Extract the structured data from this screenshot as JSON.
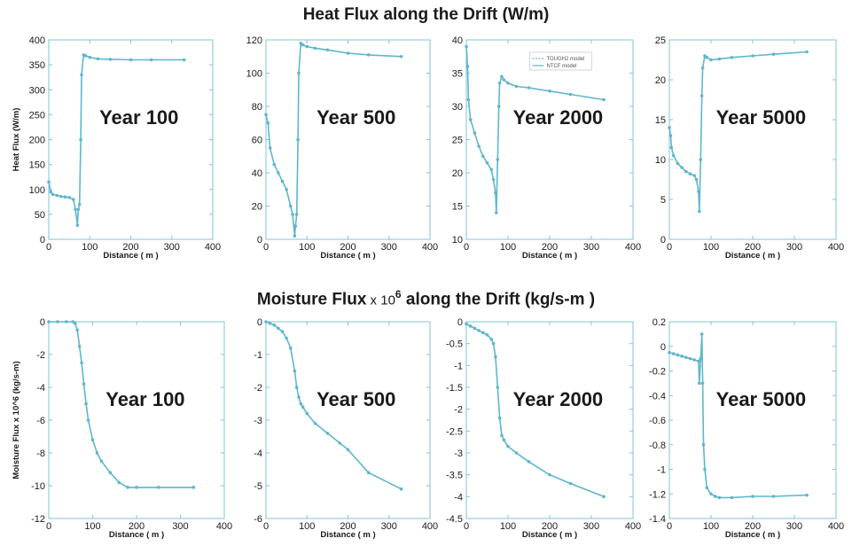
{
  "titles": {
    "heat": "Heat Flux along the Drift (W/m)",
    "moist_pre": "Moisture Flux",
    "moist_times": " x 10",
    "moist_sup": "6",
    "moist_post": " along the Drift (kg/s-m )"
  },
  "colors": {
    "series": "#5fb6cc",
    "frame": "#7fc4d6"
  },
  "chart_data": [
    {
      "type": "line",
      "row": 0,
      "col": 0,
      "annotation": "Year 100",
      "ylabel": "Heat Flux (W/m)",
      "xlabel": "Distance ( m )",
      "xlim": [
        0,
        400
      ],
      "ylim": [
        0,
        400
      ],
      "xticks": [
        "0",
        "100",
        "200",
        "300",
        "400"
      ],
      "yticks": [
        "0",
        "50",
        "100",
        "150",
        "200",
        "250",
        "300",
        "350",
        "400"
      ],
      "series": [
        {
          "x": [
            0,
            5,
            10,
            20,
            30,
            40,
            50,
            60,
            65,
            70,
            72,
            75,
            78,
            80,
            85,
            90,
            100,
            120,
            150,
            200,
            250,
            330
          ],
          "y": [
            115,
            95,
            90,
            88,
            86,
            85,
            84,
            80,
            60,
            28,
            60,
            70,
            200,
            330,
            370,
            368,
            365,
            362,
            361,
            360,
            360,
            360
          ]
        }
      ]
    },
    {
      "type": "line",
      "row": 0,
      "col": 1,
      "annotation": "Year 500",
      "ylabel": "",
      "xlabel": "Distance ( m )",
      "xlim": [
        0,
        400
      ],
      "ylim": [
        0,
        120
      ],
      "xticks": [
        "0",
        "100",
        "200",
        "300",
        "400"
      ],
      "yticks": [
        "0",
        "20",
        "40",
        "60",
        "80",
        "100",
        "120"
      ],
      "series": [
        {
          "x": [
            0,
            5,
            10,
            20,
            30,
            40,
            50,
            60,
            65,
            70,
            72,
            75,
            78,
            80,
            85,
            90,
            100,
            120,
            150,
            200,
            250,
            330
          ],
          "y": [
            75,
            70,
            55,
            45,
            40,
            35,
            30,
            20,
            15,
            2,
            8,
            15,
            60,
            100,
            118,
            117,
            116,
            115,
            114,
            112,
            111,
            110
          ]
        }
      ]
    },
    {
      "type": "line",
      "row": 0,
      "col": 2,
      "annotation": "Year 2000",
      "ylabel": "",
      "xlabel": "Distance ( m )",
      "xlim": [
        0,
        400
      ],
      "ylim": [
        10,
        40
      ],
      "xticks": [
        "0",
        "100",
        "200",
        "300",
        "400"
      ],
      "yticks": [
        "10",
        "15",
        "20",
        "25",
        "30",
        "35",
        "40"
      ],
      "legend": [
        "TOUGH2 model",
        "NTCF model"
      ],
      "series": [
        {
          "x": [
            0,
            3,
            5,
            10,
            20,
            30,
            40,
            50,
            60,
            65,
            70,
            72,
            75,
            78,
            80,
            85,
            90,
            100,
            120,
            150,
            200,
            250,
            330
          ],
          "y": [
            39,
            36,
            31,
            28,
            26,
            24,
            22.5,
            21.5,
            20.5,
            19,
            17,
            14,
            22,
            30,
            33.5,
            34.5,
            34,
            33.5,
            33,
            32.8,
            32.3,
            31.8,
            31
          ]
        }
      ]
    },
    {
      "type": "line",
      "row": 0,
      "col": 3,
      "annotation": "Year 5000",
      "ylabel": "",
      "xlabel": "Distance ( m )",
      "xlim": [
        0,
        400
      ],
      "ylim": [
        0,
        25
      ],
      "xticks": [
        "0",
        "100",
        "200",
        "300",
        "400"
      ],
      "yticks": [
        "0",
        "5",
        "10",
        "15",
        "20",
        "25"
      ],
      "series": [
        {
          "x": [
            0,
            3,
            5,
            10,
            20,
            30,
            40,
            50,
            60,
            65,
            70,
            72,
            75,
            78,
            80,
            85,
            90,
            100,
            120,
            150,
            200,
            250,
            330
          ],
          "y": [
            14,
            13,
            11.5,
            10.5,
            9.5,
            9,
            8.5,
            8.2,
            8,
            7.5,
            6,
            3.5,
            10,
            18,
            21.5,
            23,
            22.8,
            22.5,
            22.6,
            22.8,
            23,
            23.2,
            23.5
          ]
        }
      ]
    },
    {
      "type": "line",
      "row": 1,
      "col": 0,
      "annotation": "Year 100",
      "ylabel": "Moisture Flux x 10^6 (kg/s-m)",
      "xlabel": "Distance ( m )",
      "xlim": [
        0,
        400
      ],
      "ylim": [
        -12,
        0
      ],
      "xticks": [
        "0",
        "100",
        "200",
        "300",
        "400"
      ],
      "yticks": [
        "-12",
        "-10",
        "-8",
        "-6",
        "-4",
        "-2",
        "0"
      ],
      "series": [
        {
          "x": [
            0,
            20,
            40,
            55,
            60,
            65,
            70,
            75,
            80,
            85,
            90,
            100,
            110,
            120,
            140,
            160,
            180,
            200,
            250,
            330
          ],
          "y": [
            0,
            0,
            0,
            0,
            -0.1,
            -0.5,
            -1.5,
            -2.5,
            -3.8,
            -5,
            -6,
            -7.2,
            -8,
            -8.5,
            -9.2,
            -9.8,
            -10.1,
            -10.1,
            -10.1,
            -10.1
          ]
        }
      ]
    },
    {
      "type": "line",
      "row": 1,
      "col": 1,
      "annotation": "Year 500",
      "ylabel": "",
      "xlabel": "Distance ( m )",
      "xlim": [
        0,
        400
      ],
      "ylim": [
        -6,
        0
      ],
      "xticks": [
        "0",
        "100",
        "200",
        "300",
        "400"
      ],
      "yticks": [
        "-6",
        "-5",
        "-4",
        "-3",
        "-2",
        "-1",
        "0"
      ],
      "series": [
        {
          "x": [
            0,
            10,
            20,
            30,
            40,
            50,
            60,
            70,
            75,
            80,
            85,
            90,
            100,
            120,
            150,
            180,
            200,
            250,
            330
          ],
          "y": [
            0,
            -0.05,
            -0.1,
            -0.2,
            -0.3,
            -0.5,
            -0.8,
            -1.5,
            -2,
            -2.3,
            -2.5,
            -2.6,
            -2.8,
            -3.1,
            -3.4,
            -3.7,
            -3.9,
            -4.6,
            -5.1
          ]
        }
      ]
    },
    {
      "type": "line",
      "row": 1,
      "col": 2,
      "annotation": "Year 2000",
      "ylabel": "",
      "xlabel": "Distance ( m )",
      "xlim": [
        0,
        400
      ],
      "ylim": [
        -4.5,
        0
      ],
      "xticks": [
        "0",
        "100",
        "200",
        "300",
        "400"
      ],
      "yticks": [
        "-4.5",
        "-4",
        "-3.5",
        "-3",
        "-2.5",
        "-2",
        "-1.5",
        "-1",
        "-0.5",
        "0"
      ],
      "series": [
        {
          "x": [
            0,
            10,
            20,
            30,
            40,
            50,
            60,
            65,
            70,
            75,
            80,
            85,
            90,
            100,
            120,
            150,
            200,
            250,
            330
          ],
          "y": [
            -0.05,
            -0.1,
            -0.15,
            -0.2,
            -0.25,
            -0.3,
            -0.4,
            -0.5,
            -0.8,
            -1.5,
            -2.2,
            -2.6,
            -2.7,
            -2.85,
            -3.0,
            -3.2,
            -3.5,
            -3.7,
            -4.0
          ]
        }
      ]
    },
    {
      "type": "line",
      "row": 1,
      "col": 3,
      "annotation": "Year 5000",
      "ylabel": "",
      "xlabel": "Distance ( m )",
      "xlim": [
        0,
        400
      ],
      "ylim": [
        -1.4,
        0.2
      ],
      "xticks": [
        "0",
        "100",
        "200",
        "300",
        "400"
      ],
      "yticks": [
        "-1.4",
        "-1.2",
        "-1",
        "-0.8",
        "-0.6",
        "-0.4",
        "-0.2",
        "0",
        "0.2"
      ],
      "series": [
        {
          "x": [
            0,
            10,
            20,
            30,
            40,
            50,
            60,
            70,
            72,
            75,
            78,
            80,
            82,
            85,
            90,
            100,
            110,
            120,
            150,
            200,
            250,
            330
          ],
          "y": [
            -0.05,
            -0.06,
            -0.07,
            -0.08,
            -0.09,
            -0.1,
            -0.11,
            -0.12,
            -0.3,
            -0.1,
            0.1,
            -0.3,
            -0.8,
            -1.0,
            -1.15,
            -1.2,
            -1.22,
            -1.23,
            -1.23,
            -1.22,
            -1.22,
            -1.21
          ]
        }
      ]
    }
  ]
}
